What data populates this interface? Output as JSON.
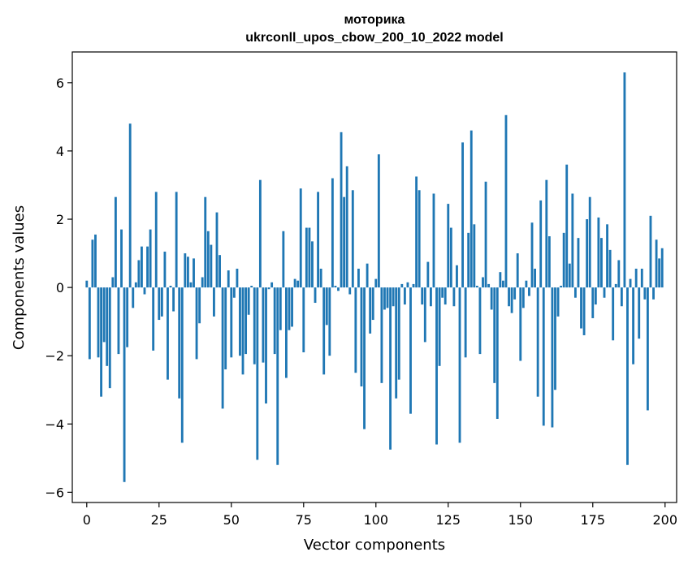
{
  "chart_data": {
    "type": "bar",
    "title": "моторика",
    "subtitle": "ukrconll_upos_cbow_200_10_2022 model",
    "xlabel": "Vector components",
    "ylabel": "Components values",
    "xlim": [
      -5,
      204
    ],
    "ylim": [
      -6.3,
      6.9
    ],
    "xticks": [
      0,
      25,
      50,
      75,
      100,
      125,
      150,
      175,
      200
    ],
    "yticks": [
      -6,
      -4,
      -2,
      0,
      2,
      4,
      6
    ],
    "ytick_labels": [
      "−6",
      "−4",
      "−2",
      "0",
      "2",
      "4",
      "6"
    ],
    "grid": false,
    "color": "#1f77b4",
    "x": [
      0,
      1,
      2,
      3,
      4,
      5,
      6,
      7,
      8,
      9,
      10,
      11,
      12,
      13,
      14,
      15,
      16,
      17,
      18,
      19,
      20,
      21,
      22,
      23,
      24,
      25,
      26,
      27,
      28,
      29,
      30,
      31,
      32,
      33,
      34,
      35,
      36,
      37,
      38,
      39,
      40,
      41,
      42,
      43,
      44,
      45,
      46,
      47,
      48,
      49,
      50,
      51,
      52,
      53,
      54,
      55,
      56,
      57,
      58,
      59,
      60,
      61,
      62,
      63,
      64,
      65,
      66,
      67,
      68,
      69,
      70,
      71,
      72,
      73,
      74,
      75,
      76,
      77,
      78,
      79,
      80,
      81,
      82,
      83,
      84,
      85,
      86,
      87,
      88,
      89,
      90,
      91,
      92,
      93,
      94,
      95,
      96,
      97,
      98,
      99,
      100,
      101,
      102,
      103,
      104,
      105,
      106,
      107,
      108,
      109,
      110,
      111,
      112,
      113,
      114,
      115,
      116,
      117,
      118,
      119,
      120,
      121,
      122,
      123,
      124,
      125,
      126,
      127,
      128,
      129,
      130,
      131,
      132,
      133,
      134,
      135,
      136,
      137,
      138,
      139,
      140,
      141,
      142,
      143,
      144,
      145,
      146,
      147,
      148,
      149,
      150,
      151,
      152,
      153,
      154,
      155,
      156,
      157,
      158,
      159,
      160,
      161,
      162,
      163,
      164,
      165,
      166,
      167,
      168,
      169,
      170,
      171,
      172,
      173,
      174,
      175,
      176,
      177,
      178,
      179,
      180,
      181,
      182,
      183,
      184,
      185,
      186,
      187,
      188,
      189,
      190,
      191,
      192,
      193,
      194,
      195,
      196,
      197,
      198,
      199
    ],
    "values": [
      0.2,
      -2.1,
      1.4,
      1.55,
      -2.05,
      -3.2,
      -1.6,
      -2.3,
      -2.95,
      0.3,
      2.65,
      -1.95,
      1.7,
      -5.7,
      -1.75,
      4.8,
      -0.6,
      0.15,
      0.8,
      1.2,
      -0.2,
      1.2,
      1.7,
      -1.85,
      2.8,
      -0.95,
      -0.85,
      1.05,
      -2.7,
      0.05,
      -0.7,
      2.8,
      -3.25,
      -4.55,
      1.0,
      0.9,
      0.15,
      0.85,
      -2.1,
      -1.05,
      0.3,
      2.65,
      1.65,
      1.25,
      -0.85,
      2.2,
      0.95,
      -3.55,
      -2.4,
      0.5,
      -2.05,
      -0.3,
      0.55,
      -2.0,
      -2.55,
      -1.95,
      -0.8,
      0.05,
      -2.25,
      -5.05,
      3.15,
      -2.2,
      -3.4,
      -0.05,
      0.15,
      -1.95,
      -5.2,
      -1.25,
      1.65,
      -2.65,
      -1.25,
      -1.15,
      0.25,
      0.2,
      2.9,
      -1.9,
      1.75,
      1.75,
      1.35,
      -0.45,
      2.8,
      0.55,
      -2.55,
      -1.1,
      -2.0,
      3.2,
      0.05,
      -0.1,
      4.55,
      2.65,
      3.55,
      -0.2,
      2.85,
      -2.5,
      0.55,
      -2.9,
      -4.15,
      0.7,
      -1.35,
      -0.95,
      0.25,
      3.9,
      -2.8,
      -0.65,
      -0.6,
      -4.75,
      -0.55,
      -3.25,
      -2.7,
      0.1,
      -0.5,
      0.15,
      -3.7,
      0.1,
      3.25,
      2.85,
      -0.5,
      -1.6,
      0.75,
      -0.55,
      2.75,
      -4.6,
      -2.3,
      -0.3,
      -0.5,
      2.45,
      1.75,
      -0.55,
      0.65,
      -4.55,
      4.25,
      -2.05,
      1.6,
      4.6,
      1.85,
      0.05,
      -1.95,
      0.3,
      3.1,
      0.1,
      -0.65,
      -2.8,
      -3.85,
      0.45,
      0.2,
      5.05,
      -0.55,
      -0.75,
      -0.35,
      1.0,
      -2.15,
      -0.6,
      0.2,
      -0.25,
      1.9,
      0.55,
      -3.2,
      2.55,
      -4.05,
      3.15,
      1.5,
      -4.1,
      -3.0,
      -0.85,
      0.05,
      1.6,
      3.6,
      0.7,
      2.75,
      -0.3,
      1.45,
      -1.2,
      -1.4,
      2.0,
      2.65,
      -0.9,
      -0.5,
      2.05,
      1.45,
      -0.3,
      1.85,
      1.1,
      -1.55,
      0.1,
      0.8,
      -0.55,
      6.3,
      -5.2,
      0.25,
      -2.25,
      0.55,
      -1.5,
      0.55,
      -0.35,
      -3.6,
      2.1,
      -0.35,
      1.4,
      0.85,
      1.15
    ]
  }
}
